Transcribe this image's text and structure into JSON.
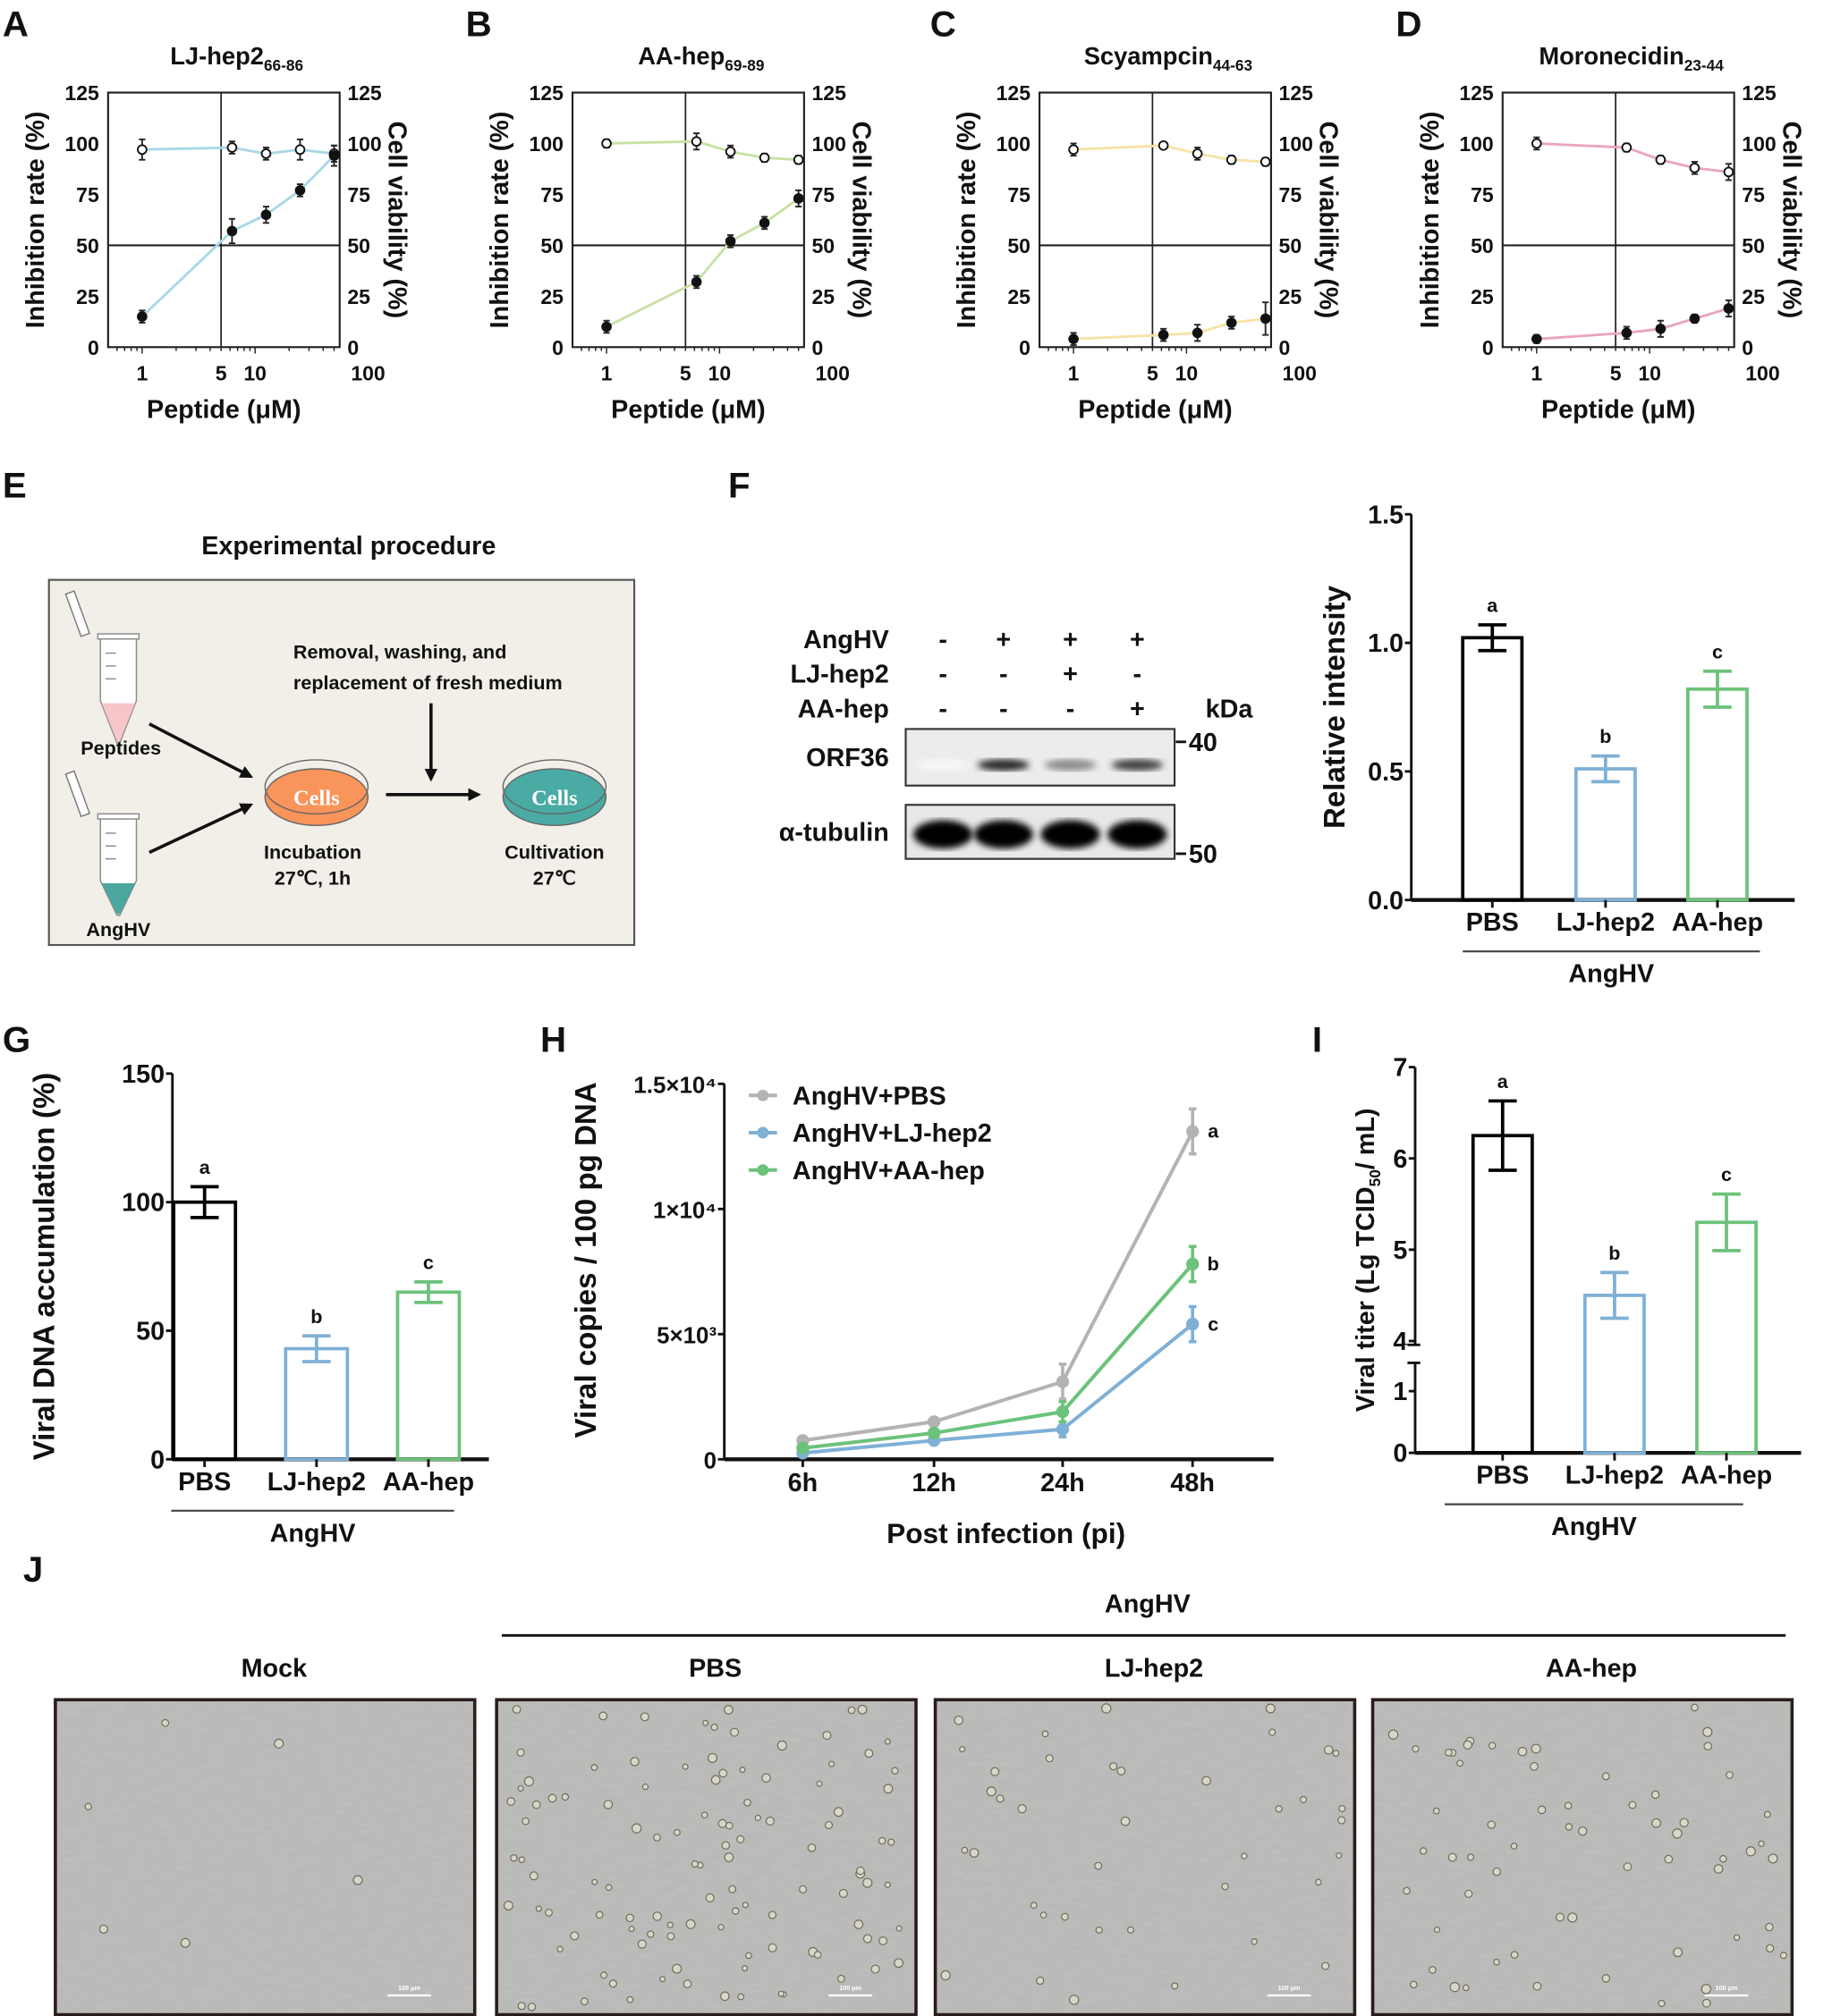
{
  "panels": {
    "A": "A",
    "B": "B",
    "C": "C",
    "D": "D",
    "E": "E",
    "F": "F",
    "G": "G",
    "H": "H",
    "I": "I",
    "J": "J"
  },
  "procedure": {
    "title": "Experimental procedure",
    "tube1_label": "Peptides",
    "tube2_label": "AngHV",
    "dish_text": "Cells",
    "dish2_text": "Cells",
    "step_line1": "Removal, washing, and",
    "step_line2": "replacement of fresh medium",
    "incubation": "Incubation",
    "incubation_cond": "27℃,   1h",
    "cultivation": "Cultivation",
    "cultivation_cond": "27℃",
    "colors": {
      "peptide": "#f7c5c8",
      "virus": "#4aa8a0",
      "dish1": "#f9945a",
      "dish2": "#4aaaa4",
      "box": "#f2efe9"
    }
  },
  "blot": {
    "rows": [
      {
        "label": "AngHV",
        "signs": [
          "-",
          "+",
          "+",
          "+"
        ]
      },
      {
        "label": "LJ-hep2",
        "signs": [
          "-",
          "-",
          "+",
          "-"
        ]
      },
      {
        "label": "AA-hep",
        "signs": [
          "-",
          "-",
          "-",
          "+"
        ]
      }
    ],
    "kda_label": "kDa",
    "bands": [
      {
        "label": "ORF36",
        "marker": "40",
        "intensity": [
          0.03,
          0.85,
          0.45,
          0.75
        ]
      },
      {
        "label": "α-tubulin",
        "marker": "50",
        "intensity": [
          1,
          1,
          1,
          1
        ]
      }
    ]
  },
  "chart_data": [
    {
      "id": "A",
      "type": "line",
      "title": "LJ-hep2",
      "title_sub": "66-86",
      "xlabel": "Peptide (μM)",
      "ylabel": "Inhibition rate (%)",
      "ylabel_right": "Cell viability (%)",
      "xscale": "log",
      "xticks": [
        "1",
        "5",
        "10",
        "100"
      ],
      "yticks": [
        0,
        25,
        50,
        75,
        100,
        125
      ],
      "ylim": [
        0,
        125
      ],
      "x": [
        1,
        6.25,
        12.5,
        25,
        50
      ],
      "series": [
        {
          "name": "Cell viability",
          "marker": "open",
          "values": [
            97,
            98,
            95,
            97,
            95
          ],
          "errors": [
            5,
            3,
            3,
            5,
            4
          ]
        },
        {
          "name": "Inhibition rate",
          "marker": "filled",
          "values": [
            15,
            57,
            65,
            77,
            94
          ],
          "errors": [
            3,
            6,
            4,
            3,
            5
          ]
        }
      ],
      "color": "#a9d8e6"
    },
    {
      "id": "B",
      "type": "line",
      "title": "AA-hep",
      "title_sub": "69-89",
      "xlabel": "Peptide (μM)",
      "ylabel": "Inhibition rate (%)",
      "ylabel_right": "Cell viability (%)",
      "xscale": "log",
      "xticks": [
        "1",
        "5",
        "10",
        "100"
      ],
      "yticks": [
        0,
        25,
        50,
        75,
        100,
        125
      ],
      "ylim": [
        0,
        125
      ],
      "x": [
        1,
        6.25,
        12.5,
        25,
        50
      ],
      "series": [
        {
          "name": "Cell viability",
          "marker": "open",
          "values": [
            100,
            101,
            96,
            93,
            92
          ],
          "errors": [
            2,
            4,
            3,
            2,
            2
          ]
        },
        {
          "name": "Inhibition rate",
          "marker": "filled",
          "values": [
            10,
            32,
            52,
            61,
            73
          ],
          "errors": [
            3,
            3,
            3,
            3,
            4
          ]
        }
      ],
      "color": "#c6e2a4"
    },
    {
      "id": "C",
      "type": "line",
      "title": "Scyampcin",
      "title_sub": "44-63",
      "xlabel": "Peptide (μM)",
      "ylabel": "Inhibition rate (%)",
      "ylabel_right": "Cell viability (%)",
      "xscale": "log",
      "xticks": [
        "1",
        "5",
        "10",
        "100"
      ],
      "yticks": [
        0,
        25,
        50,
        75,
        100,
        125
      ],
      "ylim": [
        0,
        125
      ],
      "x": [
        1,
        6.25,
        12.5,
        25,
        50
      ],
      "series": [
        {
          "name": "Cell viability",
          "marker": "open",
          "values": [
            97,
            99,
            95,
            92,
            91
          ],
          "errors": [
            3,
            1,
            3,
            2,
            2
          ]
        },
        {
          "name": "Inhibition rate",
          "marker": "filled",
          "values": [
            4,
            6,
            7,
            12,
            14
          ],
          "errors": [
            3,
            3,
            4,
            3,
            8
          ]
        }
      ],
      "color": "#f6e3a6"
    },
    {
      "id": "D",
      "type": "line",
      "title": "Moronecidin",
      "title_sub": "23-44",
      "xlabel": "Peptide (μM)",
      "ylabel": "Inhibition rate (%)",
      "ylabel_right": "Cell viability (%)",
      "xscale": "log",
      "xticks": [
        "1",
        "5",
        "10",
        "100"
      ],
      "yticks": [
        0,
        25,
        50,
        75,
        100,
        125
      ],
      "ylim": [
        0,
        125
      ],
      "x": [
        1,
        6.25,
        12.5,
        25,
        50
      ],
      "series": [
        {
          "name": "Cell viability",
          "marker": "open",
          "values": [
            100,
            98,
            92,
            88,
            86
          ],
          "errors": [
            3,
            2,
            2,
            3,
            4
          ]
        },
        {
          "name": "Inhibition rate",
          "marker": "filled",
          "values": [
            4,
            7,
            9,
            14,
            19
          ],
          "errors": [
            2,
            3,
            4,
            2,
            4
          ]
        }
      ],
      "color": "#eaa5bd"
    },
    {
      "id": "F",
      "type": "bar",
      "ylabel": "Relative intensity",
      "ylim": [
        0,
        1.5
      ],
      "yticks": [
        "0.0",
        "0.5",
        "1.0",
        "1.5"
      ],
      "ytick_values": [
        0,
        0.5,
        1,
        1.5
      ],
      "categories": [
        "PBS",
        "LJ-hep2",
        "AA-hep"
      ],
      "values": [
        1.02,
        0.51,
        0.82
      ],
      "errors": [
        0.05,
        0.05,
        0.07
      ],
      "letters": [
        "a",
        "b",
        "c"
      ],
      "colors": [
        "#000000",
        "#7fb0d6",
        "#6cc27a"
      ],
      "group_label": "AngHV"
    },
    {
      "id": "G",
      "type": "bar",
      "ylabel": "Viral DNA accumulation (%)",
      "ylim": [
        0,
        150
      ],
      "yticks": [
        "0",
        "50",
        "100",
        "150"
      ],
      "ytick_values": [
        0,
        50,
        100,
        150
      ],
      "categories": [
        "PBS",
        "LJ-hep2",
        "AA-hep"
      ],
      "values": [
        100,
        43,
        65
      ],
      "errors": [
        6,
        5,
        4
      ],
      "letters": [
        "a",
        "b",
        "c"
      ],
      "colors": [
        "#000000",
        "#7fb0d6",
        "#6cc27a"
      ],
      "group_label": "AngHV"
    },
    {
      "id": "H",
      "type": "line",
      "xlabel": "Post infection (pi)",
      "ylabel": "Viral copies / 100 pg DNA",
      "ylim": [
        0,
        15000
      ],
      "ytick_values": [
        0,
        5000,
        10000,
        15000
      ],
      "yticks": [
        "0",
        "5×10³",
        "1×10⁴",
        "1.5×10⁴"
      ],
      "categories": [
        "6h",
        "12h",
        "24h",
        "48h"
      ],
      "series": [
        {
          "name": "AngHV+PBS",
          "values": [
            750,
            1500,
            3100,
            13100
          ],
          "errors": [
            100,
            150,
            700,
            900
          ],
          "color": "#b3b3b3",
          "letter": "a"
        },
        {
          "name": "AngHV+LJ-hep2",
          "values": [
            250,
            750,
            1200,
            5400
          ],
          "errors": [
            80,
            100,
            300,
            700
          ],
          "color": "#7fb0d6",
          "letter": "c"
        },
        {
          "name": "AngHV+AA-hep",
          "values": [
            450,
            1050,
            1900,
            7800
          ],
          "errors": [
            80,
            120,
            400,
            700
          ],
          "color": "#6cc27a",
          "letter": "b"
        }
      ],
      "legend": "top-left"
    },
    {
      "id": "I",
      "type": "bar",
      "ylabel": "Viral titer (Lg TCID",
      "ylabel_sub": "50",
      "ylabel_end": "/ mL)",
      "ylim": [
        0,
        7
      ],
      "axis_break": [
        1,
        4
      ],
      "yticks": [
        "0",
        "1",
        "4",
        "5",
        "6",
        "7"
      ],
      "ytick_values": [
        0,
        1,
        4,
        5,
        6,
        7
      ],
      "categories": [
        "PBS",
        "LJ-hep2",
        "AA-hep"
      ],
      "values": [
        6.25,
        4.5,
        5.3
      ],
      "errors": [
        0.38,
        0.25,
        0.31
      ],
      "letters": [
        "a",
        "b",
        "c"
      ],
      "colors": [
        "#000000",
        "#7fb0d6",
        "#6cc27a"
      ],
      "group_label": "AngHV"
    }
  ],
  "micrographs": {
    "group_label": "AngHV",
    "images": [
      {
        "label": "Mock",
        "scale_bar": "100 μm",
        "dead_cells": 0.05
      },
      {
        "label": "PBS",
        "scale_bar": "100 μm",
        "dead_cells": 1
      },
      {
        "label": "LJ-hep2",
        "scale_bar": "100 μm",
        "dead_cells": 0.35
      },
      {
        "label": "AA-hep",
        "scale_bar": "100 μm",
        "dead_cells": 0.55
      }
    ]
  }
}
